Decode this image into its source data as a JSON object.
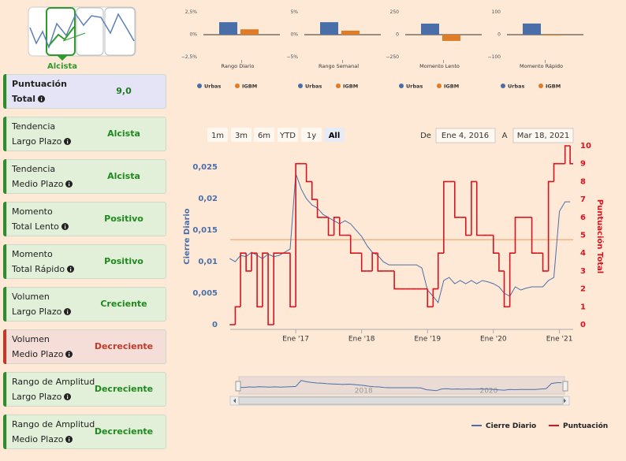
{
  "logo": {
    "label": "Alcista"
  },
  "cards": [
    {
      "line1": "Puntuación",
      "line2": "Total",
      "value": "9,0",
      "color": "#1e7a1e",
      "bg": "#e4e4f6",
      "border": "#2e8b2e",
      "bold": true
    },
    {
      "line1": "Tendencia",
      "line2": "Largo Plazo",
      "value": "Alcista",
      "color": "#1e8a1e",
      "bg": "#e2f0d9",
      "border": "#2e8b2e"
    },
    {
      "line1": "Tendencia",
      "line2": "Medio Plazo",
      "value": "Alcista",
      "color": "#1e8a1e",
      "bg": "#e2f0d9",
      "border": "#2e8b2e"
    },
    {
      "line1": "Momento",
      "line2": "Total Lento",
      "value": "Positivo",
      "color": "#1e8a1e",
      "bg": "#e2f0d9",
      "border": "#2e8b2e"
    },
    {
      "line1": "Momento",
      "line2": "Total Rápido",
      "value": "Positivo",
      "color": "#1e8a1e",
      "bg": "#e2f0d9",
      "border": "#2e8b2e"
    },
    {
      "line1": "Volumen",
      "line2": "Largo Plazo",
      "value": "Creciente",
      "color": "#1e8a1e",
      "bg": "#e2f0d9",
      "border": "#2e8b2e"
    },
    {
      "line1": "Volumen",
      "line2": "Medio Plazo",
      "value": "Decreciente",
      "color": "#c0392b",
      "bg": "#f5ddd8",
      "border": "#c0392b"
    },
    {
      "line1": "Rango de Amplitud",
      "line2": "Largo Plazo",
      "value": "Decreciente",
      "color": "#1e8a1e",
      "bg": "#e2f0d9",
      "border": "#2e8b2e"
    },
    {
      "line1": "Rango de Amplitud",
      "line2": "Medio Plazo",
      "value": "Decreciente",
      "color": "#1e8a1e",
      "bg": "#e2f0d9",
      "border": "#2e8b2e"
    }
  ],
  "chart_data": [
    {
      "type": "bar",
      "xlabel": "Rango Diario",
      "ylim": [
        -3,
        3
      ],
      "yticks": [
        {
          "value": 2.5,
          "label": "2,5%"
        },
        {
          "value": 0,
          "label": "0%"
        },
        {
          "value": -2.5,
          "label": "−2,5%"
        }
      ],
      "series": [
        {
          "name": "Urbas",
          "color": "#4a6fa8",
          "values": [
            1.4
          ]
        },
        {
          "name": "IGBM",
          "color": "#e07b27",
          "values": [
            0.6
          ]
        }
      ]
    },
    {
      "type": "bar",
      "xlabel": "Rango Semanal",
      "ylim": [
        -6,
        6
      ],
      "yticks": [
        {
          "value": 5,
          "label": "5%"
        },
        {
          "value": 0,
          "label": "0%"
        },
        {
          "value": -5,
          "label": "−5%"
        }
      ],
      "series": [
        {
          "name": "Urbas",
          "color": "#4a6fa8",
          "values": [
            2.8
          ]
        },
        {
          "name": "IGBM",
          "color": "#e07b27",
          "values": [
            0.9
          ]
        }
      ]
    },
    {
      "type": "bar",
      "xlabel": "Momento Lento",
      "ylim": [
        -300,
        300
      ],
      "yticks": [
        250,
        0,
        {
          "value": -250,
          "label": "−250"
        }
      ],
      "series": [
        {
          "name": "Urbas",
          "color": "#4a6fa8",
          "values": [
            124
          ]
        },
        {
          "name": "IGBM",
          "color": "#e07b27",
          "values": [
            -70
          ]
        }
      ]
    },
    {
      "type": "bar",
      "xlabel": "Momento Rápido",
      "ylim": [
        -120,
        120
      ],
      "yticks": [
        100,
        0,
        {
          "value": -100,
          "label": "−100"
        }
      ],
      "series": [
        {
          "name": "Urbas",
          "color": "#4a6fa8",
          "values": [
            50
          ]
        },
        {
          "name": "IGBM",
          "color": "#e07b27",
          "values": [
            -3
          ]
        }
      ]
    },
    {
      "type": "line",
      "ylabel": "Cierre Diario",
      "y2label": "Puntuación Total",
      "range_buttons": [
        "1m",
        "3m",
        "6m",
        "YTD",
        "1y",
        "All"
      ],
      "selected_button": 5,
      "range_selector": {
        "from_label": "De",
        "from": "Ene 4, 2016",
        "to_label": "A",
        "to": "Mar 18, 2021"
      },
      "xlim": [
        "2016-01-04",
        "2021-03-18"
      ],
      "xticks": [
        {
          "value": "2017-01",
          "label": "Ene '17"
        },
        {
          "value": "2018-01",
          "label": "Ene '18"
        },
        {
          "value": "2019-01",
          "label": "Ene '19"
        },
        {
          "value": "2020-01",
          "label": "Ene '20"
        },
        {
          "value": "2021-01",
          "label": "Ene '21"
        }
      ],
      "ylim": [
        0,
        0.0284
      ],
      "yticks": [
        0,
        {
          "value": 0.005,
          "label": "0,005"
        },
        {
          "value": 0.01,
          "label": "0,01"
        },
        {
          "value": 0.015,
          "label": "0,015"
        },
        {
          "value": 0.02,
          "label": "0,02"
        },
        {
          "value": 0.025,
          "label": "0,025"
        }
      ],
      "y2lim": [
        0,
        10
      ],
      "y2ticks": [
        0,
        1,
        2,
        3,
        4,
        5,
        6,
        7,
        8,
        9,
        10
      ],
      "plot_line": {
        "value": 0.0135,
        "color": "#f4b183"
      },
      "navigator_xticks": [
        {
          "value": "2018-01",
          "label": "2018"
        },
        {
          "value": "2020-01",
          "label": "2020"
        }
      ],
      "x": [
        "2016-01",
        "2016-02",
        "2016-03",
        "2016-04",
        "2016-05",
        "2016-06",
        "2016-07",
        "2016-08",
        "2016-09",
        "2016-10",
        "2016-11",
        "2016-12",
        "2017-01",
        "2017-02",
        "2017-03",
        "2017-04",
        "2017-05",
        "2017-06",
        "2017-07",
        "2017-08",
        "2017-09",
        "2017-10",
        "2017-11",
        "2017-12",
        "2018-01",
        "2018-02",
        "2018-03",
        "2018-04",
        "2018-05",
        "2018-06",
        "2018-07",
        "2018-08",
        "2018-09",
        "2018-10",
        "2018-11",
        "2018-12",
        "2019-01",
        "2019-02",
        "2019-03",
        "2019-04",
        "2019-05",
        "2019-06",
        "2019-07",
        "2019-08",
        "2019-09",
        "2019-10",
        "2019-11",
        "2019-12",
        "2020-01",
        "2020-02",
        "2020-03",
        "2020-04",
        "2020-05",
        "2020-06",
        "2020-07",
        "2020-08",
        "2020-09",
        "2020-10",
        "2020-11",
        "2020-12",
        "2021-01",
        "2021-02",
        "2021-03"
      ],
      "series": [
        {
          "name": "Cierre Diario",
          "color": "#4a6fa8",
          "values": [
            0.0105,
            0.01,
            0.011,
            0.0108,
            0.0115,
            0.011,
            0.0105,
            0.0112,
            0.0108,
            0.011,
            0.0115,
            0.012,
            0.024,
            0.0215,
            0.02,
            0.019,
            0.0185,
            0.0175,
            0.017,
            0.0165,
            0.016,
            0.0165,
            0.016,
            0.015,
            0.014,
            0.0125,
            0.0115,
            0.011,
            0.01,
            0.0095,
            0.0095,
            0.0095,
            0.0095,
            0.0095,
            0.0095,
            0.009,
            0.0055,
            0.0045,
            0.0035,
            0.007,
            0.0075,
            0.0065,
            0.007,
            0.0065,
            0.007,
            0.0065,
            0.007,
            0.0068,
            0.0065,
            0.006,
            0.005,
            0.0045,
            0.006,
            0.0055,
            0.0058,
            0.006,
            0.006,
            0.006,
            0.007,
            0.0075,
            0.018,
            0.0195,
            0.0195
          ]
        },
        {
          "name": "Puntuación",
          "color": "#d7141f",
          "axis": "y2",
          "step": true,
          "values": [
            0,
            1,
            4,
            3,
            4,
            1,
            4,
            0,
            4,
            4,
            4,
            1,
            9,
            9,
            8,
            7,
            6,
            6,
            5,
            6,
            5,
            5,
            4,
            4,
            3,
            3,
            4,
            3,
            3,
            3,
            2,
            2,
            2,
            2,
            2,
            2,
            1,
            2,
            4,
            8,
            8,
            6,
            6,
            5,
            8,
            5,
            5,
            5,
            4,
            3,
            1,
            4,
            6,
            6,
            6,
            4,
            4,
            3,
            8,
            9,
            9,
            10,
            9
          ]
        }
      ]
    }
  ]
}
